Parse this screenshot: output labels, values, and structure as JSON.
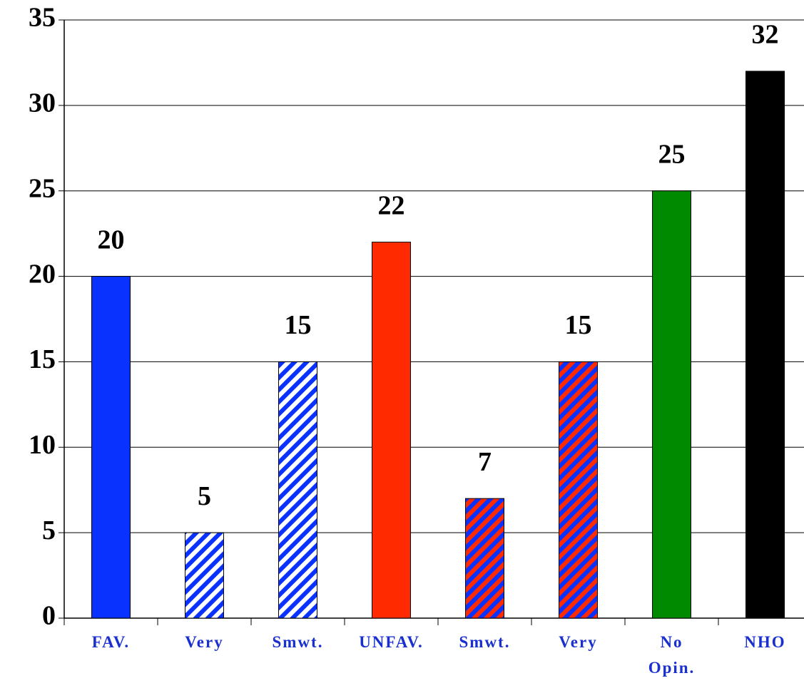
{
  "chart_data": {
    "type": "bar",
    "categories": [
      "FAV.",
      "Very",
      "Smwt.",
      "UNFAV.",
      "Smwt.",
      "Very",
      "No\nOpin.",
      "NHO"
    ],
    "values": [
      20,
      5,
      15,
      22,
      7,
      15,
      25,
      32
    ],
    "colors": [
      "#0a32ff",
      "#ffffff",
      "#ffffff",
      "#ff2a00",
      "#0a32ff",
      "#0a32ff",
      "#008a00",
      "#000000"
    ],
    "hatch_colors": [
      null,
      "#0a32ff",
      "#0a32ff",
      null,
      "#ff2a00",
      "#ff2a00",
      null,
      null
    ],
    "ylim": [
      0,
      35
    ],
    "yticks": [
      0,
      5,
      10,
      15,
      20,
      25,
      30,
      35
    ],
    "grid": true
  }
}
